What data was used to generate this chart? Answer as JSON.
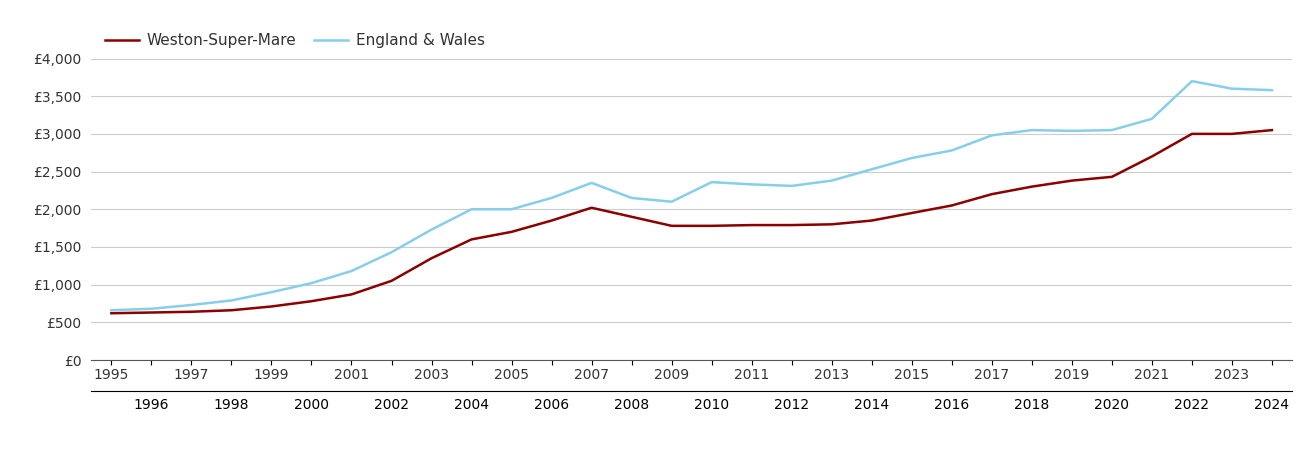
{
  "years": [
    1995,
    1996,
    1997,
    1998,
    1999,
    2000,
    2001,
    2002,
    2003,
    2004,
    2005,
    2006,
    2007,
    2008,
    2009,
    2010,
    2011,
    2012,
    2013,
    2014,
    2015,
    2016,
    2017,
    2018,
    2019,
    2020,
    2021,
    2022,
    2023,
    2024
  ],
  "wsm": [
    620,
    630,
    640,
    660,
    710,
    780,
    870,
    1050,
    1350,
    1600,
    1700,
    1850,
    2020,
    1900,
    1780,
    1780,
    1790,
    1790,
    1800,
    1850,
    1950,
    2050,
    2200,
    2300,
    2380,
    2430,
    2700,
    3000,
    3000,
    3050
  ],
  "ew": [
    660,
    680,
    730,
    790,
    900,
    1020,
    1180,
    1430,
    1730,
    2000,
    2000,
    2150,
    2350,
    2150,
    2100,
    2360,
    2330,
    2310,
    2380,
    2530,
    2680,
    2780,
    2980,
    3050,
    3040,
    3050,
    3200,
    3700,
    3600,
    3580
  ],
  "wsm_color": "#8b0000",
  "ew_color": "#87ceeb",
  "wsm_label": "Weston-Super-Mare",
  "ew_label": "England & Wales",
  "ylim": [
    0,
    4000
  ],
  "yticks": [
    0,
    500,
    1000,
    1500,
    2000,
    2500,
    3000,
    3500,
    4000
  ],
  "ytick_labels": [
    "£0",
    "£500",
    "£1,000",
    "£1,500",
    "£2,000",
    "£2,500",
    "£3,000",
    "£3,500",
    "£4,000"
  ],
  "background_color": "#ffffff",
  "grid_color": "#cccccc",
  "line_width": 1.8,
  "font_size_ticks": 10,
  "font_size_legend": 11,
  "odd_years": [
    1995,
    1997,
    1999,
    2001,
    2003,
    2005,
    2007,
    2009,
    2011,
    2013,
    2015,
    2017,
    2019,
    2021,
    2023
  ],
  "even_years": [
    1996,
    1998,
    2000,
    2002,
    2004,
    2006,
    2008,
    2010,
    2012,
    2014,
    2016,
    2018,
    2020,
    2022,
    2024
  ]
}
